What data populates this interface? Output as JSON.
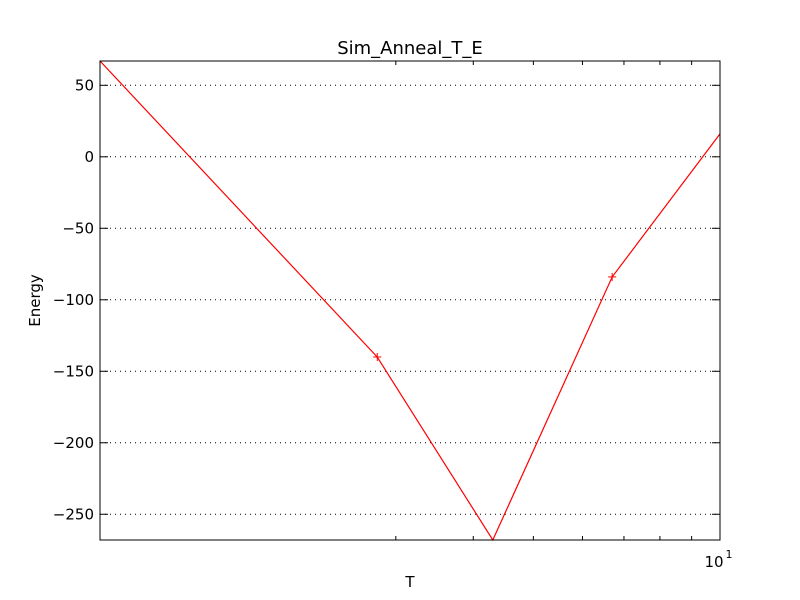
{
  "chart_data": {
    "type": "line",
    "title": "Sim_Anneal_T_E",
    "xlabel": "T",
    "ylabel": "Energy",
    "xscale": "log",
    "xlim": [
      1,
      10
    ],
    "ylim": [
      -268,
      67
    ],
    "grid": {
      "y": true,
      "x": false,
      "style": "dotted"
    },
    "x_major_ticks": [
      {
        "value": 10,
        "base": "10",
        "exponent": "1"
      }
    ],
    "x_minor_ticks": [
      3,
      4,
      5,
      6,
      7,
      8,
      9
    ],
    "y_ticks": [
      {
        "value": 50,
        "label": "50"
      },
      {
        "value": 0,
        "label": "0"
      },
      {
        "value": -50,
        "label": "−50"
      },
      {
        "value": -100,
        "label": "−100"
      },
      {
        "value": -150,
        "label": "−150"
      },
      {
        "value": -200,
        "label": "−200"
      },
      {
        "value": -250,
        "label": "−250"
      }
    ],
    "series": [
      {
        "color": "#ff0000",
        "marker": "+",
        "points": [
          {
            "x": 1.0,
            "y": 67
          },
          {
            "x": 2.8,
            "y": -140
          },
          {
            "x": 4.3,
            "y": -268
          },
          {
            "x": 6.7,
            "y": -84
          },
          {
            "x": 10.0,
            "y": 16
          }
        ],
        "marker_indices": [
          1,
          3
        ]
      }
    ]
  }
}
